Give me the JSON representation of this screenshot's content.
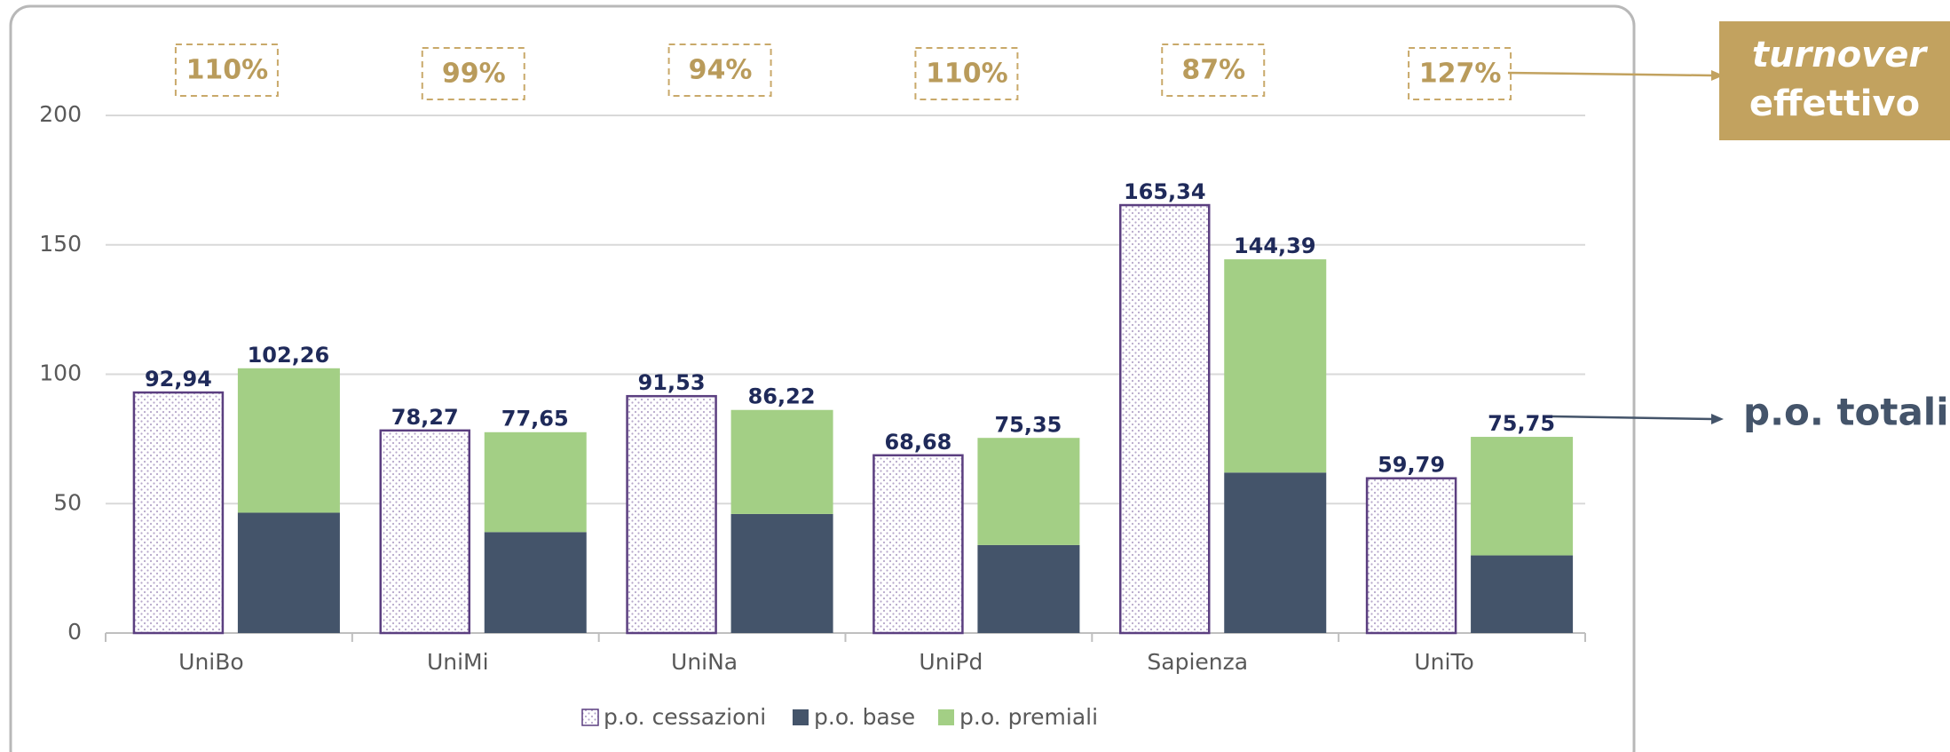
{
  "chart_data": {
    "type": "bar",
    "categories": [
      "UniBo",
      "UniMi",
      "UniNa",
      "UniPd",
      "Sapienza",
      "UniTo"
    ],
    "series": [
      {
        "name": "p.o. cessazioni",
        "color": "#5b3f80",
        "values": [
          92.94,
          78.27,
          91.53,
          68.68,
          165.34,
          59.79
        ],
        "value_labels": [
          "92,94",
          "78,27",
          "91,53",
          "68,68",
          "165,34",
          "59,79"
        ]
      },
      {
        "name": "p.o. base",
        "color": "#44546a",
        "values": [
          46.5,
          39,
          46,
          34,
          62,
          30
        ]
      },
      {
        "name": "p.o. premiali",
        "color": "#a3cf85",
        "values": [
          55.8,
          38.6,
          40.2,
          41.4,
          82.4,
          45.8
        ]
      }
    ],
    "totals": {
      "values": [
        102.26,
        77.65,
        86.22,
        75.35,
        144.39,
        75.75
      ],
      "value_labels": [
        "102,26",
        "77,65",
        "86,22",
        "75,35",
        "144,39",
        "75,75"
      ]
    },
    "turnover": {
      "values": [
        110,
        99,
        94,
        110,
        87,
        127
      ],
      "value_labels": [
        "110%",
        "99%",
        "94%",
        "110%",
        "87%",
        "127%"
      ]
    },
    "annotations": [
      "turnover",
      "effettivo",
      "p.o. totali"
    ],
    "ylim": [
      0,
      200
    ],
    "yticks": [
      0,
      50,
      100,
      150,
      200
    ],
    "grid": true
  }
}
